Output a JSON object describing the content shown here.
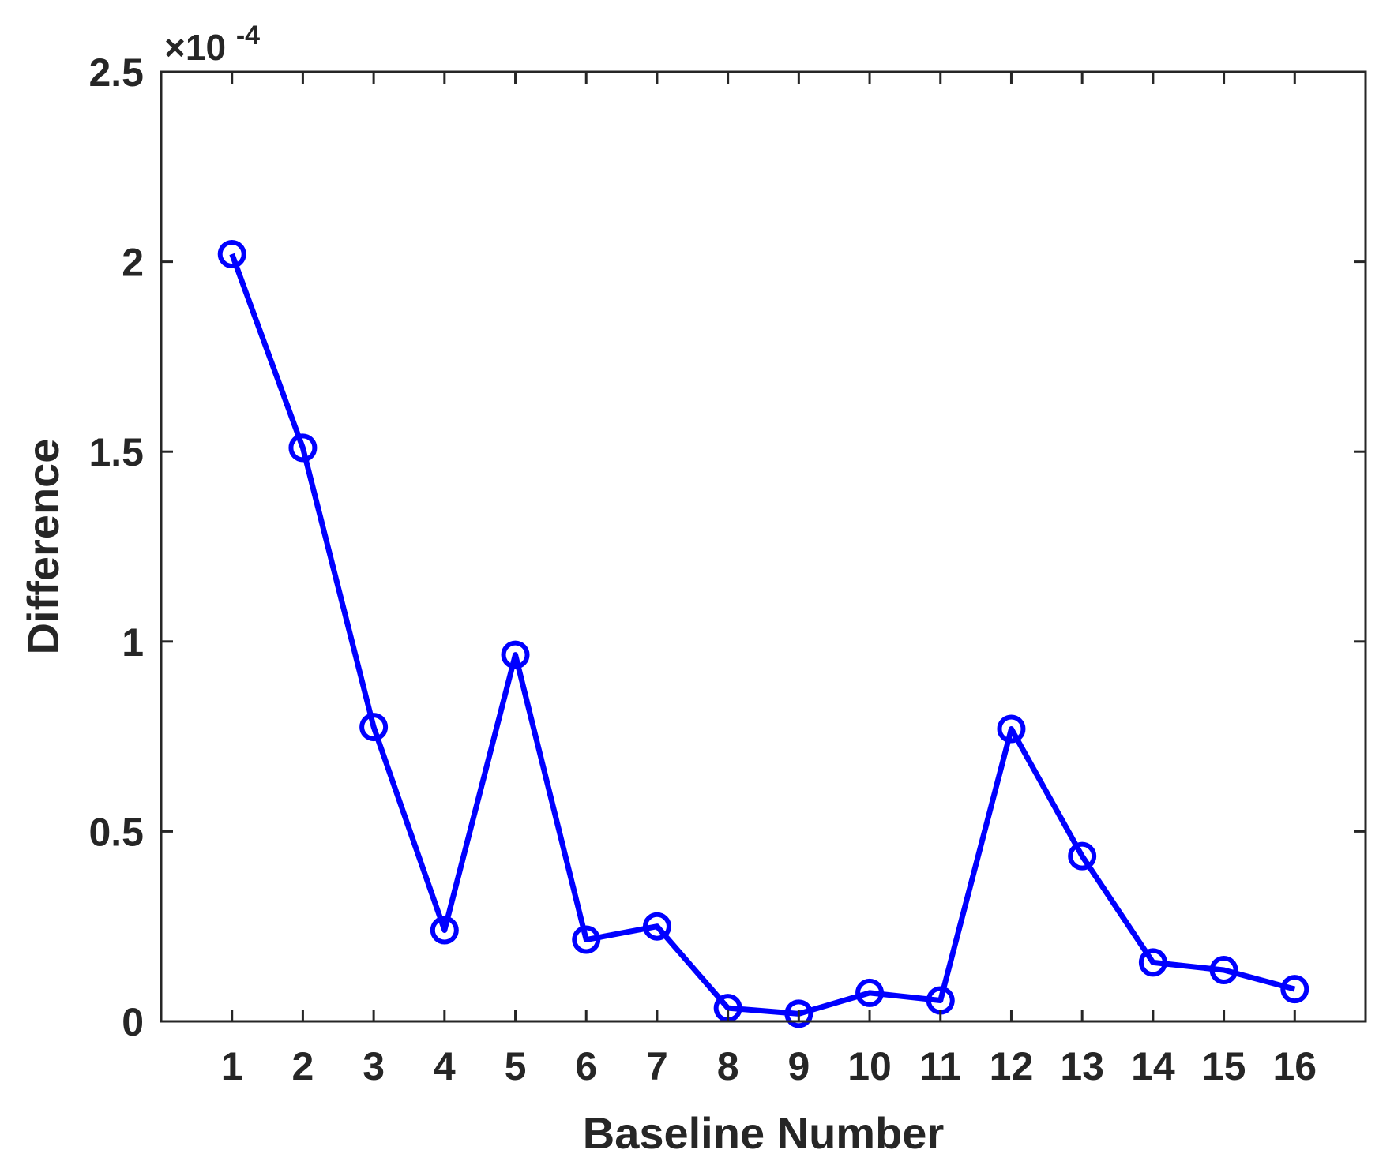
{
  "chart_data": {
    "type": "line",
    "xlabel": "Baseline Number",
    "ylabel": "Difference",
    "y_exponent_label": {
      "base": "×10",
      "exponent": "-4"
    },
    "x_ticks": [
      "1",
      "2",
      "3",
      "4",
      "5",
      "6",
      "7",
      "8",
      "9",
      "10",
      "11",
      "12",
      "13",
      "14",
      "15",
      "16"
    ],
    "y_ticks": [
      "0",
      "0.5",
      "1",
      "1.5",
      "2",
      "2.5"
    ],
    "xlim": [
      0,
      17
    ],
    "ylim": [
      0,
      2.5
    ],
    "x": [
      1,
      2,
      3,
      4,
      5,
      6,
      7,
      8,
      9,
      10,
      11,
      12,
      13,
      14,
      15,
      16
    ],
    "series": [
      {
        "values": [
          2.02,
          1.51,
          0.775,
          0.24,
          0.965,
          0.215,
          0.25,
          0.035,
          0.02,
          0.075,
          0.055,
          0.77,
          0.435,
          0.155,
          0.135,
          0.085
        ],
        "color": "#0000ff",
        "marker": "circle"
      }
    ],
    "grid": false
  }
}
